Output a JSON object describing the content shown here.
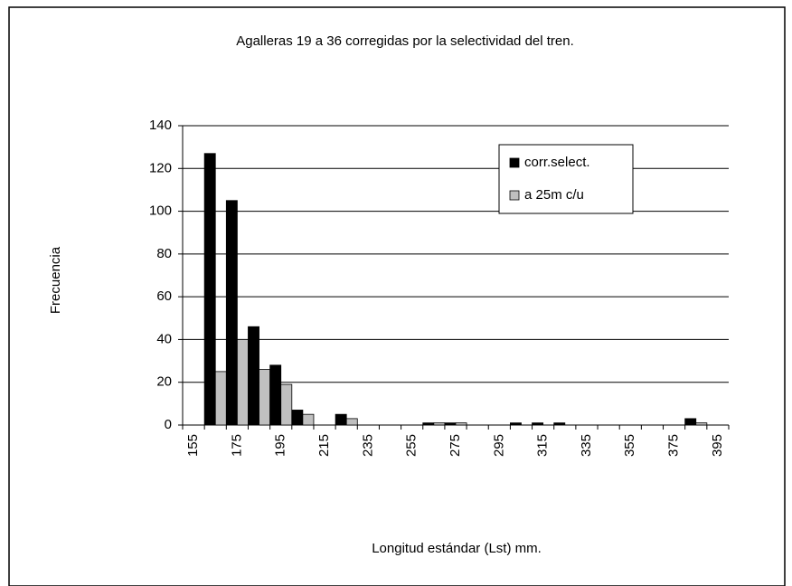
{
  "chart_data": {
    "type": "bar",
    "title": "Agalleras 19 a 36 corregidas por la selectividad del tren.",
    "x_label": "Longitud estándar (Lst) mm.",
    "y_label": "Frecuencia",
    "categories": [
      "155",
      null,
      "175",
      null,
      "195",
      null,
      "215",
      null,
      "235",
      null,
      "255",
      null,
      "275",
      null,
      "295",
      null,
      "315",
      null,
      "335",
      null,
      "355",
      null,
      "375",
      null,
      "395"
    ],
    "series": [
      {
        "name": "corr.select.",
        "color": "#000000",
        "values": [
          0,
          127,
          105,
          46,
          28,
          7,
          0,
          5,
          0,
          0,
          0,
          1,
          1,
          0,
          0,
          1,
          1,
          1,
          0,
          0,
          0,
          0,
          0,
          3,
          0
        ]
      },
      {
        "name": "a 25m c/u",
        "color": "#c0c0c0",
        "values": [
          0,
          25,
          40,
          26,
          19,
          5,
          0,
          3,
          0,
          0,
          0,
          1,
          1,
          0,
          0,
          0,
          0,
          0,
          0,
          0,
          0,
          0,
          0,
          1,
          0
        ]
      }
    ],
    "ylim": [
      0,
      140
    ],
    "yticks": [
      0,
      20,
      40,
      60,
      80,
      100,
      120,
      140
    ],
    "grid": true,
    "legend": "top-right"
  }
}
